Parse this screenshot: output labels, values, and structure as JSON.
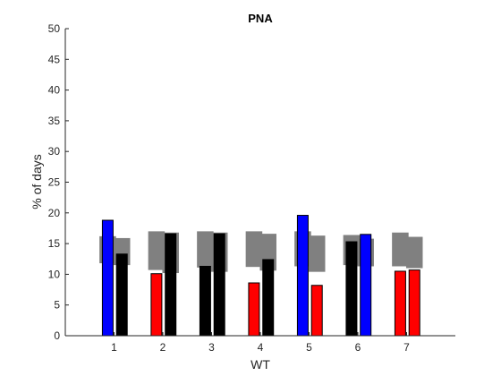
{
  "chart_data": {
    "type": "bar",
    "title": "PNA",
    "xlabel": "WT",
    "ylabel": "% of days",
    "xlim": [
      0,
      8
    ],
    "ylim": [
      0,
      50
    ],
    "x_ticks": [
      1,
      2,
      3,
      4,
      5,
      6,
      7
    ],
    "y_ticks": [
      0,
      5,
      10,
      15,
      20,
      25,
      30,
      35,
      40,
      45,
      50
    ],
    "grid": false,
    "legend": "none",
    "colors": {
      "blue": "#0000ff",
      "red": "#ff0000",
      "black": "#000000",
      "range": "#808080"
    },
    "series": [
      {
        "values": [
          18.8,
          10.1,
          11.3,
          8.6,
          19.6,
          15.3,
          10.5
        ],
        "colors": [
          "blue",
          "red",
          "black",
          "red",
          "blue",
          "black",
          "red"
        ],
        "range_low": [
          11.8,
          10.7,
          11.1,
          11.2,
          11.3,
          11.5,
          11.3
        ],
        "range_high": [
          16.2,
          17.0,
          17.0,
          17.0,
          17.0,
          16.4,
          16.8
        ]
      },
      {
        "values": [
          13.3,
          16.6,
          16.6,
          12.4,
          8.2,
          16.5,
          10.7
        ],
        "colors": [
          "black",
          "black",
          "black",
          "black",
          "red",
          "blue",
          "red"
        ],
        "range_low": [
          11.5,
          10.2,
          10.4,
          10.6,
          10.4,
          11.3,
          11.0
        ],
        "range_high": [
          15.9,
          16.8,
          16.8,
          16.6,
          16.3,
          15.8,
          16.1
        ]
      }
    ]
  }
}
